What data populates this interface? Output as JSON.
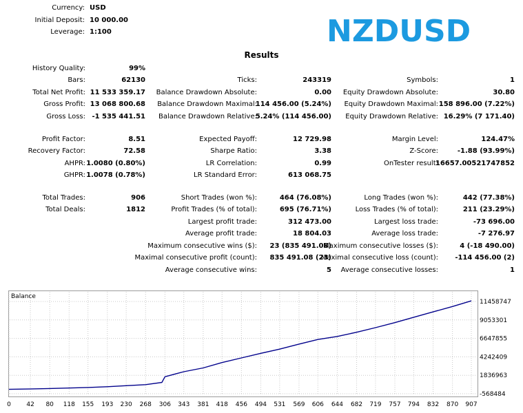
{
  "symbol": "NZDUSD",
  "header": {
    "currency_label": "Currency:",
    "currency_value": "USD",
    "deposit_label": "Initial Deposit:",
    "deposit_value": "10 000.00",
    "leverage_label": "Leverage:",
    "leverage_value": "1:100"
  },
  "results_title": "Results",
  "stats": {
    "history_quality": {
      "label": "History Quality:",
      "value": "99%"
    },
    "bars": {
      "label": "Bars:",
      "value": "62130"
    },
    "total_net_profit": {
      "label": "Total Net Profit:",
      "value": "11 533 359.17"
    },
    "gross_profit": {
      "label": "Gross Profit:",
      "value": "13 068 800.68"
    },
    "gross_loss": {
      "label": "Gross Loss:",
      "value": "-1 535 441.51"
    },
    "ticks": {
      "label": "Ticks:",
      "value": "243319"
    },
    "balance_dd_abs": {
      "label": "Balance Drawdown Absolute:",
      "value": "0.00"
    },
    "balance_dd_max": {
      "label": "Balance Drawdown Maximal:",
      "value": "114 456.00 (5.24%)"
    },
    "balance_dd_rel": {
      "label": "Balance Drawdown Relative:",
      "value": "5.24% (114 456.00)"
    },
    "symbols": {
      "label": "Symbols:",
      "value": "1"
    },
    "equity_dd_abs": {
      "label": "Equity Drawdown Absolute:",
      "value": "30.80"
    },
    "equity_dd_max": {
      "label": "Equity Drawdown Maximal:",
      "value": "158 896.00 (7.22%)"
    },
    "equity_dd_rel": {
      "label": "Equity Drawdown Relative:",
      "value": "16.29% (7 171.40)"
    },
    "profit_factor": {
      "label": "Profit Factor:",
      "value": "8.51"
    },
    "recovery_factor": {
      "label": "Recovery Factor:",
      "value": "72.58"
    },
    "ahpr": {
      "label": "AHPR:",
      "value": "1.0080 (0.80%)"
    },
    "ghpr": {
      "label": "GHPR:",
      "value": "1.0078 (0.78%)"
    },
    "expected_payoff": {
      "label": "Expected Payoff:",
      "value": "12 729.98"
    },
    "sharpe_ratio": {
      "label": "Sharpe Ratio:",
      "value": "3.38"
    },
    "lr_correlation": {
      "label": "LR Correlation:",
      "value": "0.99"
    },
    "lr_std_error": {
      "label": "LR Standard Error:",
      "value": "613 068.75"
    },
    "margin_level": {
      "label": "Margin Level:",
      "value": "124.47%"
    },
    "z_score": {
      "label": "Z-Score:",
      "value": "-1.88 (93.99%)"
    },
    "ontester": {
      "label": "OnTester result:",
      "value": "16657.00521747852"
    },
    "total_trades": {
      "label": "Total Trades:",
      "value": "906"
    },
    "total_deals": {
      "label": "Total Deals:",
      "value": "1812"
    },
    "short_trades": {
      "label": "Short Trades (won %):",
      "value": "464 (76.08%)"
    },
    "profit_trades": {
      "label": "Profit Trades (% of total):",
      "value": "695 (76.71%)"
    },
    "largest_profit": {
      "label": "Largest profit trade:",
      "value": "312 473.00"
    },
    "avg_profit": {
      "label": "Average profit trade:",
      "value": "18 804.03"
    },
    "max_consec_wins": {
      "label": "Maximum consecutive wins ($):",
      "value": "23 (835 491.08)"
    },
    "maximal_consec_profit": {
      "label": "Maximal consecutive profit (count):",
      "value": "835 491.08 (23)"
    },
    "avg_consec_wins": {
      "label": "Average consecutive wins:",
      "value": "5"
    },
    "long_trades": {
      "label": "Long Trades (won %):",
      "value": "442 (77.38%)"
    },
    "loss_trades": {
      "label": "Loss Trades (% of total):",
      "value": "211 (23.29%)"
    },
    "largest_loss": {
      "label": "Largest loss trade:",
      "value": "-73 696.00"
    },
    "avg_loss": {
      "label": "Average loss trade:",
      "value": "-7 276.97"
    },
    "max_consec_losses": {
      "label": "Maximum consecutive losses ($):",
      "value": "4 (-18 490.00)"
    },
    "maximal_consec_loss": {
      "label": "Maximal consecutive loss (count):",
      "value": "-114 456.00 (2)"
    },
    "avg_consec_losses": {
      "label": "Average consecutive losses:",
      "value": "1"
    }
  },
  "chart_data": {
    "type": "line",
    "title": "Balance",
    "line_color": "#00008b",
    "x_ticks": [
      "0",
      "42",
      "80",
      "118",
      "155",
      "193",
      "230",
      "268",
      "306",
      "343",
      "381",
      "418",
      "456",
      "494",
      "531",
      "569",
      "606",
      "644",
      "682",
      "719",
      "757",
      "794",
      "832",
      "870",
      "907"
    ],
    "y_ticks": [
      "11458747",
      "9053301",
      "6647855",
      "4242409",
      "1836963",
      "-568484"
    ],
    "xlim": [
      0,
      907
    ],
    "ylim": [
      -568484,
      11458747
    ],
    "series": [
      {
        "x": [
          0,
          42,
          80,
          118,
          155,
          193,
          230,
          268,
          300,
          306,
          343,
          381,
          418,
          456,
          494,
          531,
          569,
          606,
          644,
          682,
          719,
          757,
          794,
          832,
          870,
          907
        ],
        "y": [
          10000,
          50000,
          110000,
          180000,
          250000,
          350000,
          480000,
          620000,
          900000,
          1650000,
          2300000,
          2800000,
          3500000,
          4100000,
          4700000,
          5250000,
          5900000,
          6500000,
          6900000,
          7450000,
          8050000,
          8700000,
          9400000,
          10100000,
          10800000,
          11543359
        ]
      }
    ]
  }
}
